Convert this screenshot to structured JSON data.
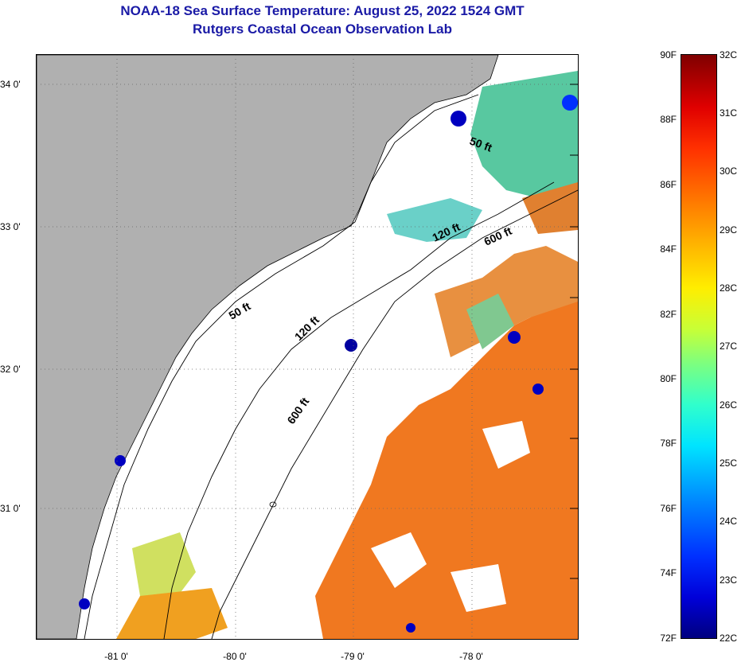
{
  "title": {
    "line1": "NOAA-18 Sea Surface Temperature:  August 25, 2022 1524 GMT",
    "line2": "Rutgers Coastal Ocean Observation Lab"
  },
  "map": {
    "lat_labels": [
      "34 0'",
      "33 0'",
      "32 0'",
      "31 0'"
    ],
    "lon_labels": [
      "-81 0'",
      "-80 0'",
      "-79 0'",
      "-78 0'"
    ],
    "contour_labels": [
      "50 ft",
      "50 ft",
      "120 ft",
      "120 ft",
      "600 ft",
      "600 ft"
    ],
    "colors": {
      "land": "#b0b0b0",
      "cloud": "#ffffff",
      "warm": "#f07820",
      "cool": "#40c8e0"
    }
  },
  "colorbar": {
    "fahrenheit": [
      "90F",
      "88F",
      "86F",
      "84F",
      "82F",
      "80F",
      "78F",
      "76F",
      "74F",
      "72F"
    ],
    "celsius": [
      "32C",
      "31C",
      "30C",
      "29C",
      "28C",
      "27C",
      "26C",
      "25C",
      "24C",
      "23C",
      "22C"
    ]
  }
}
